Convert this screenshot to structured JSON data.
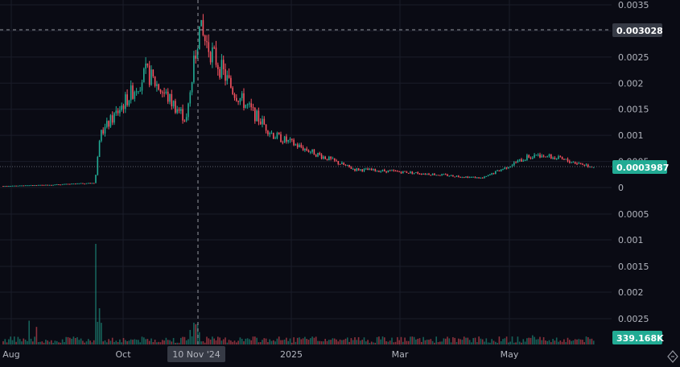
{
  "chart_data": {
    "type": "candlestick",
    "price_axis": {
      "ticks_top": [
        "0.0035",
        "0.003",
        "0.0025",
        "0.002",
        "0.0015",
        "0.001",
        "0.0005",
        "0"
      ],
      "ticks_bottom": [
        "0.0005",
        "0.001",
        "0.0015",
        "0.002",
        "0.0025"
      ]
    },
    "x_ticks": [
      "Aug",
      "Oct",
      "2025",
      "Mar",
      "May"
    ],
    "crosshair": {
      "price": "0.003028",
      "date": "10 Nov '24"
    },
    "last_price": {
      "value": "0.0003987",
      "color": "#22ab94"
    },
    "volume_label": {
      "value": "339.168K",
      "color": "#22ab94"
    },
    "colors": {
      "up": "#22ab94",
      "down": "#f7525f",
      "background": "#0a0b14",
      "grid": "#1a1d29"
    },
    "icons": {
      "corner": "diamond-arrows-icon"
    },
    "price_series_key_points": [
      {
        "t": "Jul 2024",
        "price": 3e-05
      },
      {
        "t": "Aug 2024",
        "price": 5e-05
      },
      {
        "t": "Sep 2024",
        "price": 9e-05
      },
      {
        "t": "late Sep 2024",
        "price": 0.001
      },
      {
        "t": "mid Oct 2024",
        "price": 0.0022
      },
      {
        "t": "late Oct 2024",
        "price": 0.0013
      },
      {
        "t": "10 Nov 2024",
        "price": 0.003028
      },
      {
        "t": "late Nov 2024",
        "price": 0.00185
      },
      {
        "t": "Dec 2024",
        "price": 0.001
      },
      {
        "t": "Jan 2025",
        "price": 0.0006
      },
      {
        "t": "Feb 2025",
        "price": 0.00035
      },
      {
        "t": "Mar 2025",
        "price": 0.0003
      },
      {
        "t": "Apr 2025",
        "price": 0.00018
      },
      {
        "t": "May 2025",
        "price": 0.00065
      },
      {
        "t": "Jun 2025",
        "price": 0.0003987
      }
    ]
  }
}
